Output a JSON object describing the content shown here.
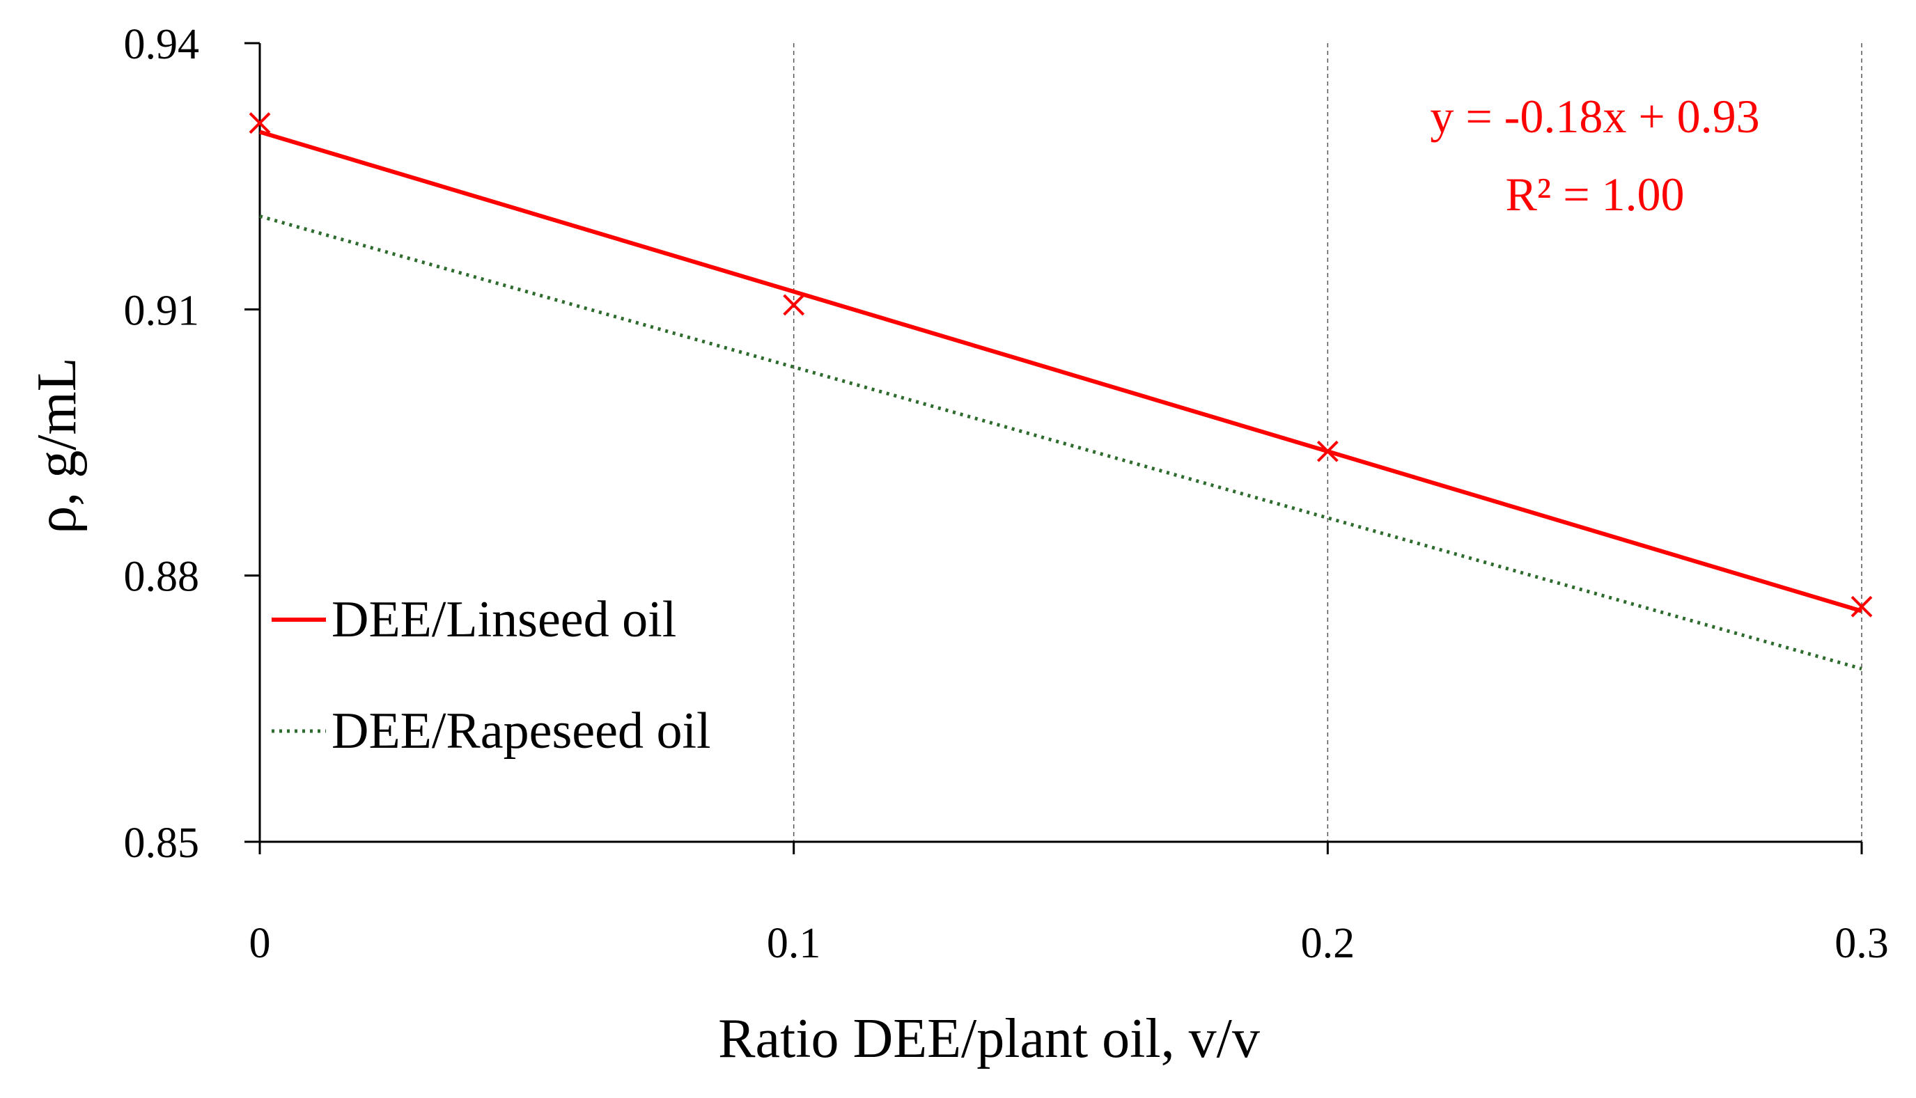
{
  "chart_data": {
    "type": "line",
    "title": "",
    "xlabel": "Ratio DEE/plant oil, v/v",
    "ylabel": "ρ,  g/mL",
    "xlim": [
      0,
      0.3
    ],
    "ylim": [
      0.85,
      0.94
    ],
    "x_ticks": [
      "0",
      "0.1",
      "0.2",
      "0.3"
    ],
    "y_ticks": [
      "0.85",
      "0.88",
      "0.91",
      "0.94"
    ],
    "x_tick_values": [
      0,
      0.1,
      0.2,
      0.3
    ],
    "y_tick_values": [
      0.85,
      0.88,
      0.91,
      0.94
    ],
    "grid": "vertical dashed",
    "legend_position": "left-middle",
    "series": [
      {
        "name": "DEE/Linseed oil",
        "style": "solid",
        "color": "#ff0000",
        "markers": "x",
        "x": [
          0,
          0.1,
          0.2,
          0.3
        ],
        "values": [
          0.931,
          0.9105,
          0.894,
          0.8765
        ],
        "trendline": {
          "slope": -0.18,
          "intercept": 0.93
        }
      },
      {
        "name": "DEE/Rapeseed oil",
        "style": "dotted",
        "color": "#2e6b2e",
        "markers": "none",
        "x": [
          0,
          0.3
        ],
        "values": [
          0.9205,
          0.8695
        ]
      }
    ],
    "annotations": {
      "equation": "y = -0.18x + 0.93",
      "r_squared": "R² = 1.00",
      "color": "#ff0000"
    }
  }
}
